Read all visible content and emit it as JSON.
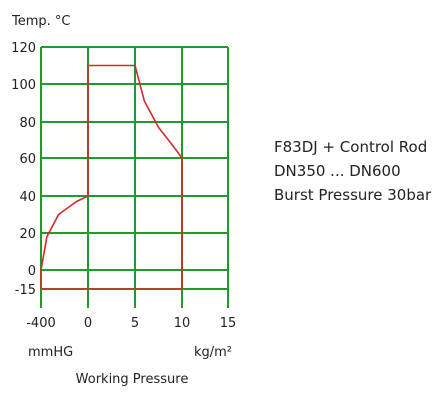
{
  "chart_data": {
    "type": "area",
    "ylabel": "Temp. °C",
    "xlabel": "Working Pressure",
    "x_unit_left": "mmHG",
    "x_unit_right": "kg/m²",
    "x_ticks": [
      {
        "label": "-400",
        "value": -400
      },
      {
        "label": "0",
        "value": 0
      },
      {
        "label": "5",
        "value": 5
      },
      {
        "label": "10",
        "value": 10
      },
      {
        "label": "15",
        "value": 15
      }
    ],
    "y_ticks": [
      {
        "label": "120",
        "value": 120
      },
      {
        "label": "100",
        "value": 100
      },
      {
        "label": "80",
        "value": 80
      },
      {
        "label": "60",
        "value": 60
      },
      {
        "label": "40",
        "value": 40
      },
      {
        "label": "20",
        "value": 20
      },
      {
        "label": "0",
        "value": 0
      },
      {
        "label": "-15",
        "value": -15
      }
    ],
    "ylim": [
      -15,
      120
    ],
    "xlim": [
      -400,
      15
    ],
    "grid": true,
    "colors": {
      "grid": "#1e9a2e",
      "series": "#d42a2a",
      "text": "#222222"
    },
    "envelope": [
      {
        "x": -400,
        "y": -15
      },
      {
        "x": -400,
        "y": 0
      },
      {
        "x": -350,
        "y": 18
      },
      {
        "x": -250,
        "y": 30
      },
      {
        "x": -100,
        "y": 37
      },
      {
        "x": 0,
        "y": 40
      },
      {
        "x": 0,
        "y": 110
      },
      {
        "x": 5,
        "y": 110
      },
      {
        "x": 6,
        "y": 91
      },
      {
        "x": 7.5,
        "y": 77
      },
      {
        "x": 9,
        "y": 67
      },
      {
        "x": 10,
        "y": 60
      },
      {
        "x": 10,
        "y": -15
      },
      {
        "x": -400,
        "y": -15
      }
    ]
  },
  "product": {
    "line1": "F83DJ + Control Rod",
    "line2": "DN350 ... DN600",
    "line3": "Burst Pressure 30bar"
  }
}
